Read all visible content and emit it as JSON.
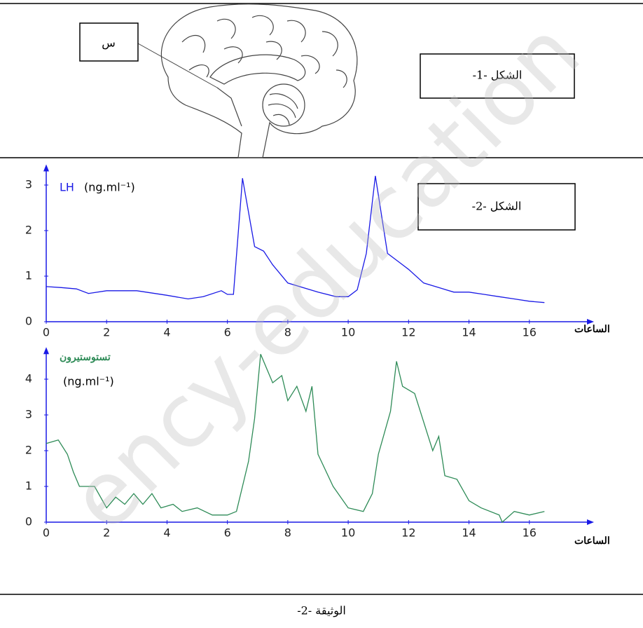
{
  "figure1": {
    "pointer_label": "س",
    "caption": "الشكل -1-"
  },
  "figure2_caption": "الشكل -2-",
  "document_caption": "الوثيقة -2-",
  "watermark": "ency-education",
  "chart_data": [
    {
      "type": "line",
      "y_label": "LH",
      "y_unit": "(ng.ml⁻¹)",
      "x_label": "الساعات",
      "color": "#1a1ae6",
      "x": [
        0,
        0.5,
        1,
        1.4,
        2,
        3,
        4,
        4.7,
        5.2,
        5.8,
        6,
        6.2,
        6.5,
        6.9,
        7.2,
        7.5,
        8,
        9,
        9.6,
        10,
        10.3,
        10.6,
        10.9,
        11.3,
        11.7,
        12,
        12.5,
        13,
        13.5,
        14,
        14.5,
        15,
        15.5,
        16,
        16.5
      ],
      "values": [
        0.77,
        0.75,
        0.72,
        0.62,
        0.68,
        0.68,
        0.58,
        0.5,
        0.55,
        0.68,
        0.6,
        0.6,
        3.15,
        1.65,
        1.55,
        1.25,
        0.85,
        0.65,
        0.55,
        0.55,
        0.7,
        1.5,
        3.2,
        1.5,
        1.3,
        1.15,
        0.85,
        0.75,
        0.65,
        0.65,
        0.6,
        0.55,
        0.5,
        0.45,
        0.42
      ],
      "xlim": [
        0,
        18
      ],
      "ylim": [
        0,
        3.3
      ],
      "xticks": [
        0,
        2,
        4,
        6,
        8,
        10,
        12,
        14,
        16
      ],
      "yticks": [
        0,
        1,
        2,
        3
      ]
    },
    {
      "type": "line",
      "y_label": "تستوستيرون",
      "y_unit": "(ng.ml⁻¹)",
      "x_label": "الساعات",
      "color": "#2e8b57",
      "x": [
        0,
        0.4,
        0.7,
        0.9,
        1.1,
        1.6,
        2,
        2.3,
        2.6,
        2.9,
        3.2,
        3.5,
        3.8,
        4.2,
        4.5,
        5,
        5.5,
        6,
        6.3,
        6.7,
        6.9,
        7.1,
        7.3,
        7.5,
        7.8,
        8,
        8.3,
        8.6,
        8.8,
        9,
        9.5,
        10,
        10.5,
        10.8,
        11,
        11.4,
        11.6,
        11.8,
        12.2,
        12.5,
        12.8,
        13,
        13.2,
        13.6,
        14,
        14.4,
        15,
        15.1,
        15.5,
        16,
        16.5
      ],
      "values": [
        2.2,
        2.3,
        1.9,
        1.4,
        1.0,
        1.0,
        0.4,
        0.7,
        0.5,
        0.8,
        0.5,
        0.8,
        0.4,
        0.5,
        0.3,
        0.4,
        0.2,
        0.2,
        0.3,
        1.7,
        2.9,
        4.7,
        4.3,
        3.9,
        4.1,
        3.4,
        3.8,
        3.1,
        3.8,
        1.9,
        1.0,
        0.4,
        0.3,
        0.8,
        1.9,
        3.1,
        4.5,
        3.8,
        3.6,
        2.8,
        2.0,
        2.4,
        1.3,
        1.2,
        0.6,
        0.4,
        0.2,
        0.0,
        0.3,
        0.2,
        0.3
      ],
      "xlim": [
        0,
        18
      ],
      "ylim": [
        0,
        4.7
      ],
      "xticks": [
        0,
        2,
        4,
        6,
        8,
        10,
        12,
        14,
        16
      ],
      "yticks": [
        0,
        1,
        2,
        3,
        4
      ]
    }
  ]
}
